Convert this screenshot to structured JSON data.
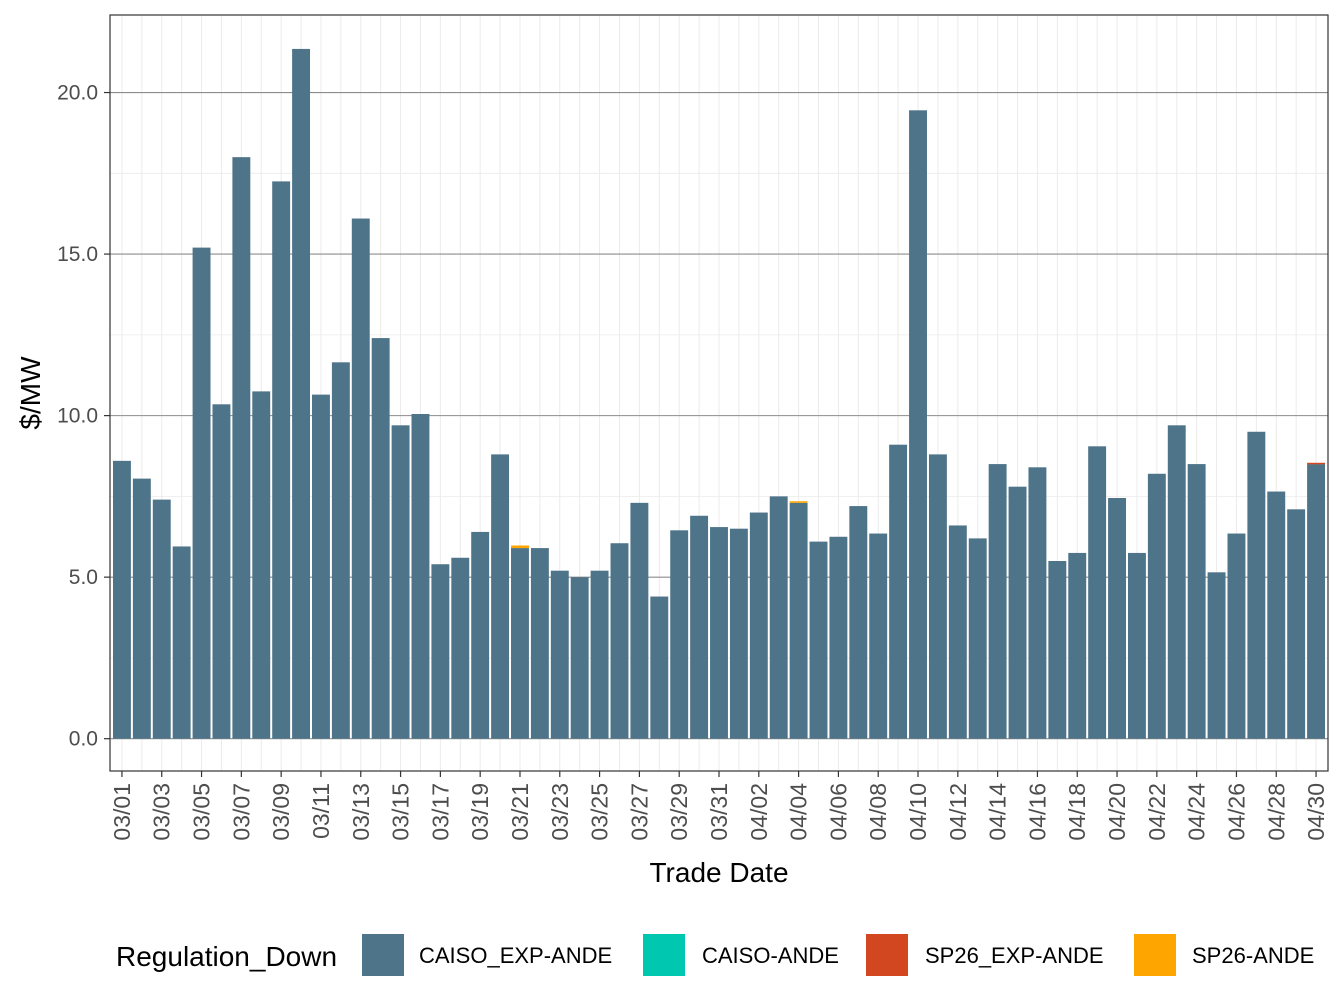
{
  "chart_data": {
    "type": "bar",
    "stacked": true,
    "title": "",
    "xlabel": "Trade Date",
    "ylabel": "$/MW",
    "ylim": [
      -1.0,
      22.4
    ],
    "yticks": [
      0,
      5,
      10,
      15,
      20
    ],
    "ytick_labels": [
      "0.0",
      "5.0",
      "10.0",
      "15.0",
      "20.0"
    ],
    "legend_title": "Regulation_Down",
    "legend_position": "bottom",
    "categories": [
      "03/01",
      "03/02",
      "03/03",
      "03/04",
      "03/05",
      "03/06",
      "03/07",
      "03/08",
      "03/09",
      "03/10",
      "03/11",
      "03/12",
      "03/13",
      "03/14",
      "03/15",
      "03/16",
      "03/17",
      "03/18",
      "03/19",
      "03/20",
      "03/21",
      "03/22",
      "03/23",
      "03/24",
      "03/25",
      "03/26",
      "03/27",
      "03/28",
      "03/29",
      "03/30",
      "03/31",
      "04/01",
      "04/02",
      "04/03",
      "04/04",
      "04/05",
      "04/06",
      "04/07",
      "04/08",
      "04/09",
      "04/10",
      "04/11",
      "04/12",
      "04/13",
      "04/14",
      "04/15",
      "04/16",
      "04/17",
      "04/18",
      "04/19",
      "04/20",
      "04/21",
      "04/22",
      "04/23",
      "04/24",
      "04/25",
      "04/26",
      "04/27",
      "04/28",
      "04/29",
      "04/30"
    ],
    "xtick_labels": [
      "03/01",
      "03/03",
      "03/05",
      "03/07",
      "03/09",
      "03/11",
      "03/13",
      "03/15",
      "03/17",
      "03/19",
      "03/21",
      "03/23",
      "03/25",
      "03/27",
      "03/29",
      "03/31",
      "04/02",
      "04/04",
      "04/06",
      "04/08",
      "04/10",
      "04/12",
      "04/14",
      "04/16",
      "04/18",
      "04/20",
      "04/22",
      "04/24",
      "04/26",
      "04/28",
      "04/30"
    ],
    "series": [
      {
        "name": "CAISO_EXP-ANDE",
        "color": "#4e7489",
        "values": [
          8.6,
          8.05,
          7.4,
          5.95,
          15.2,
          10.35,
          18.0,
          10.75,
          17.25,
          21.35,
          10.65,
          11.65,
          16.1,
          12.4,
          9.7,
          10.05,
          5.4,
          5.6,
          6.4,
          8.8,
          5.9,
          5.9,
          5.2,
          5.0,
          5.2,
          6.05,
          7.3,
          4.4,
          6.45,
          6.9,
          6.55,
          6.5,
          7.0,
          7.5,
          7.3,
          6.1,
          6.25,
          7.2,
          6.35,
          9.1,
          19.45,
          8.8,
          6.6,
          6.2,
          8.5,
          7.8,
          8.4,
          5.5,
          5.75,
          9.05,
          7.45,
          5.75,
          8.2,
          9.7,
          8.5,
          5.15,
          6.35,
          9.5,
          7.65,
          7.1,
          8.5
        ]
      },
      {
        "name": "CAISO-ANDE",
        "color": "#00c7b0",
        "values": [
          0,
          0,
          0,
          0,
          0,
          0,
          0,
          0,
          0,
          0,
          0,
          0,
          0,
          0,
          0,
          0,
          0,
          0,
          0,
          0,
          0,
          0,
          0,
          0,
          0,
          0,
          0,
          0,
          0,
          0,
          0,
          0,
          0,
          0,
          0,
          0,
          0,
          0,
          0,
          0,
          0,
          0,
          0,
          0,
          0,
          0,
          0,
          0,
          0,
          0,
          0,
          0,
          0,
          0,
          0,
          0,
          0,
          0,
          0,
          0,
          0
        ]
      },
      {
        "name": "SP26_EXP-ANDE",
        "color": "#d2471f",
        "values": [
          0,
          0,
          0,
          0,
          0,
          0,
          0,
          0,
          0,
          0,
          0,
          0,
          0,
          0,
          0,
          0,
          0,
          0,
          0,
          0,
          0,
          0,
          0,
          0,
          0,
          0,
          0,
          0,
          0,
          0,
          0,
          0,
          0,
          0,
          0,
          0,
          0,
          0,
          0,
          0,
          0,
          0,
          0,
          0,
          0,
          0,
          0,
          0,
          0,
          0,
          0,
          0,
          0,
          0,
          0,
          0,
          0,
          0,
          0,
          0,
          0.04
        ]
      },
      {
        "name": "SP26-ANDE",
        "color": "#ffa500",
        "values": [
          0,
          0,
          0,
          0,
          0,
          0,
          0,
          0,
          0,
          0,
          0,
          0,
          0,
          0,
          0,
          0,
          0,
          0,
          0,
          0,
          0.08,
          0,
          0,
          0,
          0,
          0,
          0,
          0,
          0,
          0,
          0,
          0,
          0,
          0,
          0.05,
          0,
          0,
          0,
          0,
          0,
          0,
          0,
          0,
          0,
          0,
          0,
          0,
          0,
          0,
          0,
          0,
          0,
          0,
          0,
          0,
          0,
          0,
          0,
          0,
          0,
          0
        ]
      }
    ]
  }
}
